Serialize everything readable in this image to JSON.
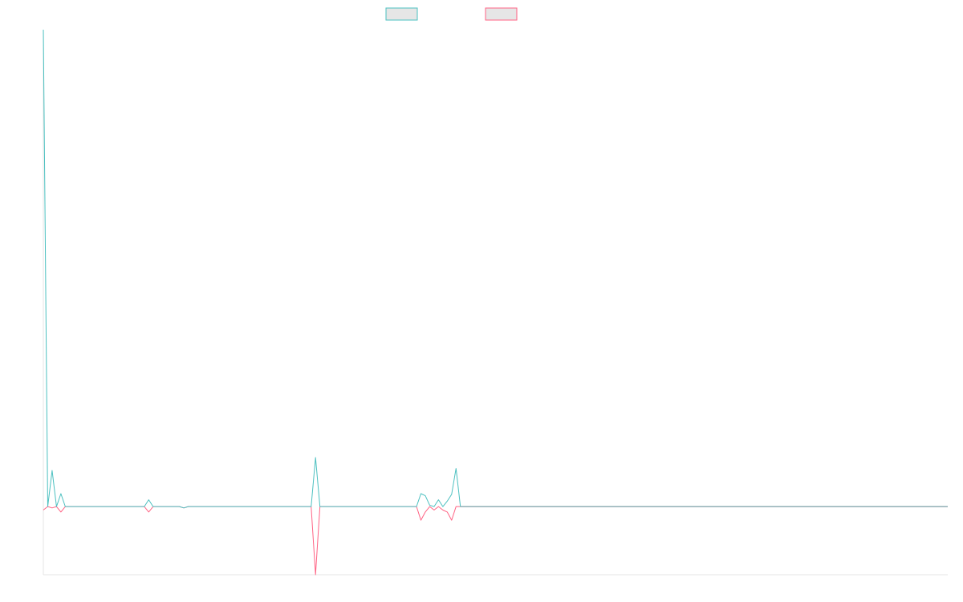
{
  "chart_data": {
    "type": "line",
    "x_count": 207,
    "ylim": [
      -100,
      700
    ],
    "legend_position": "top-center",
    "grid": false,
    "series": [
      {
        "color": "#4bc0c0",
        "fill": "#e6e6e6",
        "points": [
          [
            0,
            700
          ],
          [
            1,
            0
          ],
          [
            2,
            53
          ],
          [
            3,
            0
          ],
          [
            4,
            19
          ],
          [
            5,
            0
          ],
          [
            23,
            0
          ],
          [
            24,
            10
          ],
          [
            25,
            0
          ],
          [
            31,
            0
          ],
          [
            32,
            -2
          ],
          [
            33,
            0
          ],
          [
            61,
            0
          ],
          [
            62,
            72
          ],
          [
            63,
            0
          ],
          [
            85,
            0
          ],
          [
            86,
            19
          ],
          [
            87,
            16
          ],
          [
            88,
            2
          ],
          [
            89,
            0
          ],
          [
            90,
            10
          ],
          [
            91,
            0
          ],
          [
            92,
            8
          ],
          [
            93,
            18
          ],
          [
            94,
            56
          ],
          [
            95,
            0
          ],
          [
            206,
            0
          ]
        ]
      },
      {
        "color": "#ff6384",
        "fill": "#e6e6e6",
        "points": [
          [
            0,
            -5
          ],
          [
            1,
            0
          ],
          [
            2,
            -2
          ],
          [
            3,
            0
          ],
          [
            4,
            -8
          ],
          [
            5,
            0
          ],
          [
            23,
            0
          ],
          [
            24,
            -8
          ],
          [
            25,
            0
          ],
          [
            31,
            0
          ],
          [
            32,
            -2
          ],
          [
            33,
            0
          ],
          [
            61,
            0
          ],
          [
            62,
            -100
          ],
          [
            63,
            0
          ],
          [
            85,
            0
          ],
          [
            86,
            -20
          ],
          [
            87,
            -8
          ],
          [
            88,
            0
          ],
          [
            89,
            -5
          ],
          [
            90,
            0
          ],
          [
            91,
            -5
          ],
          [
            92,
            -8
          ],
          [
            93,
            -20
          ],
          [
            94,
            0
          ],
          [
            206,
            0
          ]
        ]
      }
    ]
  }
}
